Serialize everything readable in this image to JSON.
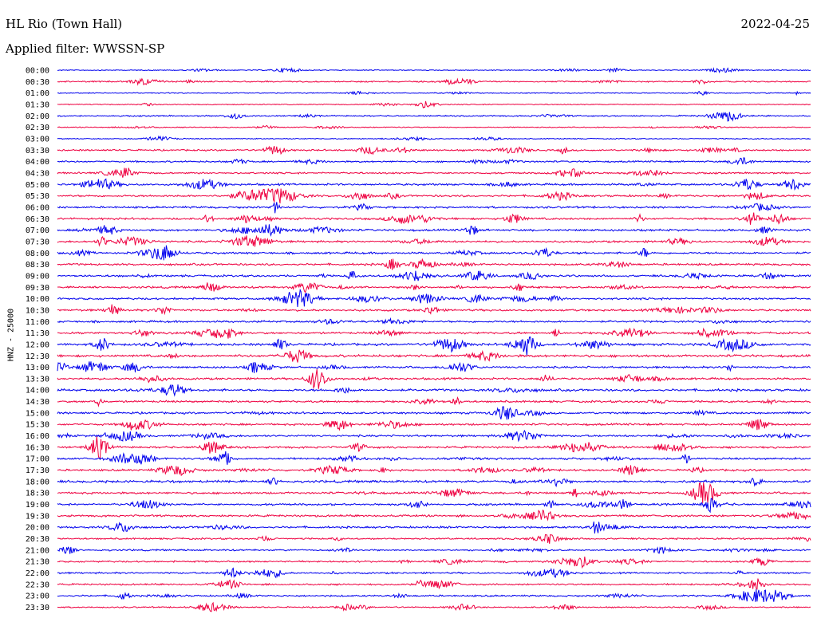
{
  "header": {
    "station": "HL Rio (Town Hall)",
    "date": "2022-04-25",
    "filter": "Applied filter: WWSSN-SP"
  },
  "channel_label": "HNZ - 25000",
  "chart_data": {
    "type": "line",
    "title": "HL Rio (Town Hall)",
    "subtitle": "Applied filter: WWSSN-SP",
    "ylabel": "HNZ - 25000",
    "xlabel": "",
    "grid": false,
    "legend": "none",
    "tick_labels": [
      "00:00",
      "00:30",
      "01:00",
      "01:30",
      "02:00",
      "02:30",
      "03:00",
      "03:30",
      "04:00",
      "04:30",
      "05:00",
      "05:30",
      "06:00",
      "06:30",
      "07:00",
      "07:30",
      "08:00",
      "08:30",
      "09:00",
      "09:30",
      "10:00",
      "10:30",
      "11:00",
      "11:30",
      "12:00",
      "12:30",
      "13:00",
      "13:30",
      "14:00",
      "14:30",
      "15:00",
      "15:30",
      "16:00",
      "16:30",
      "17:00",
      "17:30",
      "18:00",
      "18:30",
      "19:00",
      "19:30",
      "20:00",
      "20:30",
      "21:00",
      "21:30",
      "22:00",
      "22:30",
      "23:00",
      "23:30"
    ],
    "trace_colors": [
      "#0000ee",
      "#ee0040"
    ],
    "noise_level": [
      1,
      2,
      1,
      1,
      2,
      1,
      1,
      3,
      3,
      3,
      4,
      4,
      4,
      4,
      4,
      4,
      4,
      4,
      4,
      4,
      4,
      4,
      4,
      4,
      5,
      5,
      4,
      4,
      5,
      4,
      4,
      4,
      4,
      4,
      4,
      4,
      5,
      4,
      4,
      4,
      4,
      3,
      3,
      3,
      3,
      3,
      3,
      2
    ]
  }
}
